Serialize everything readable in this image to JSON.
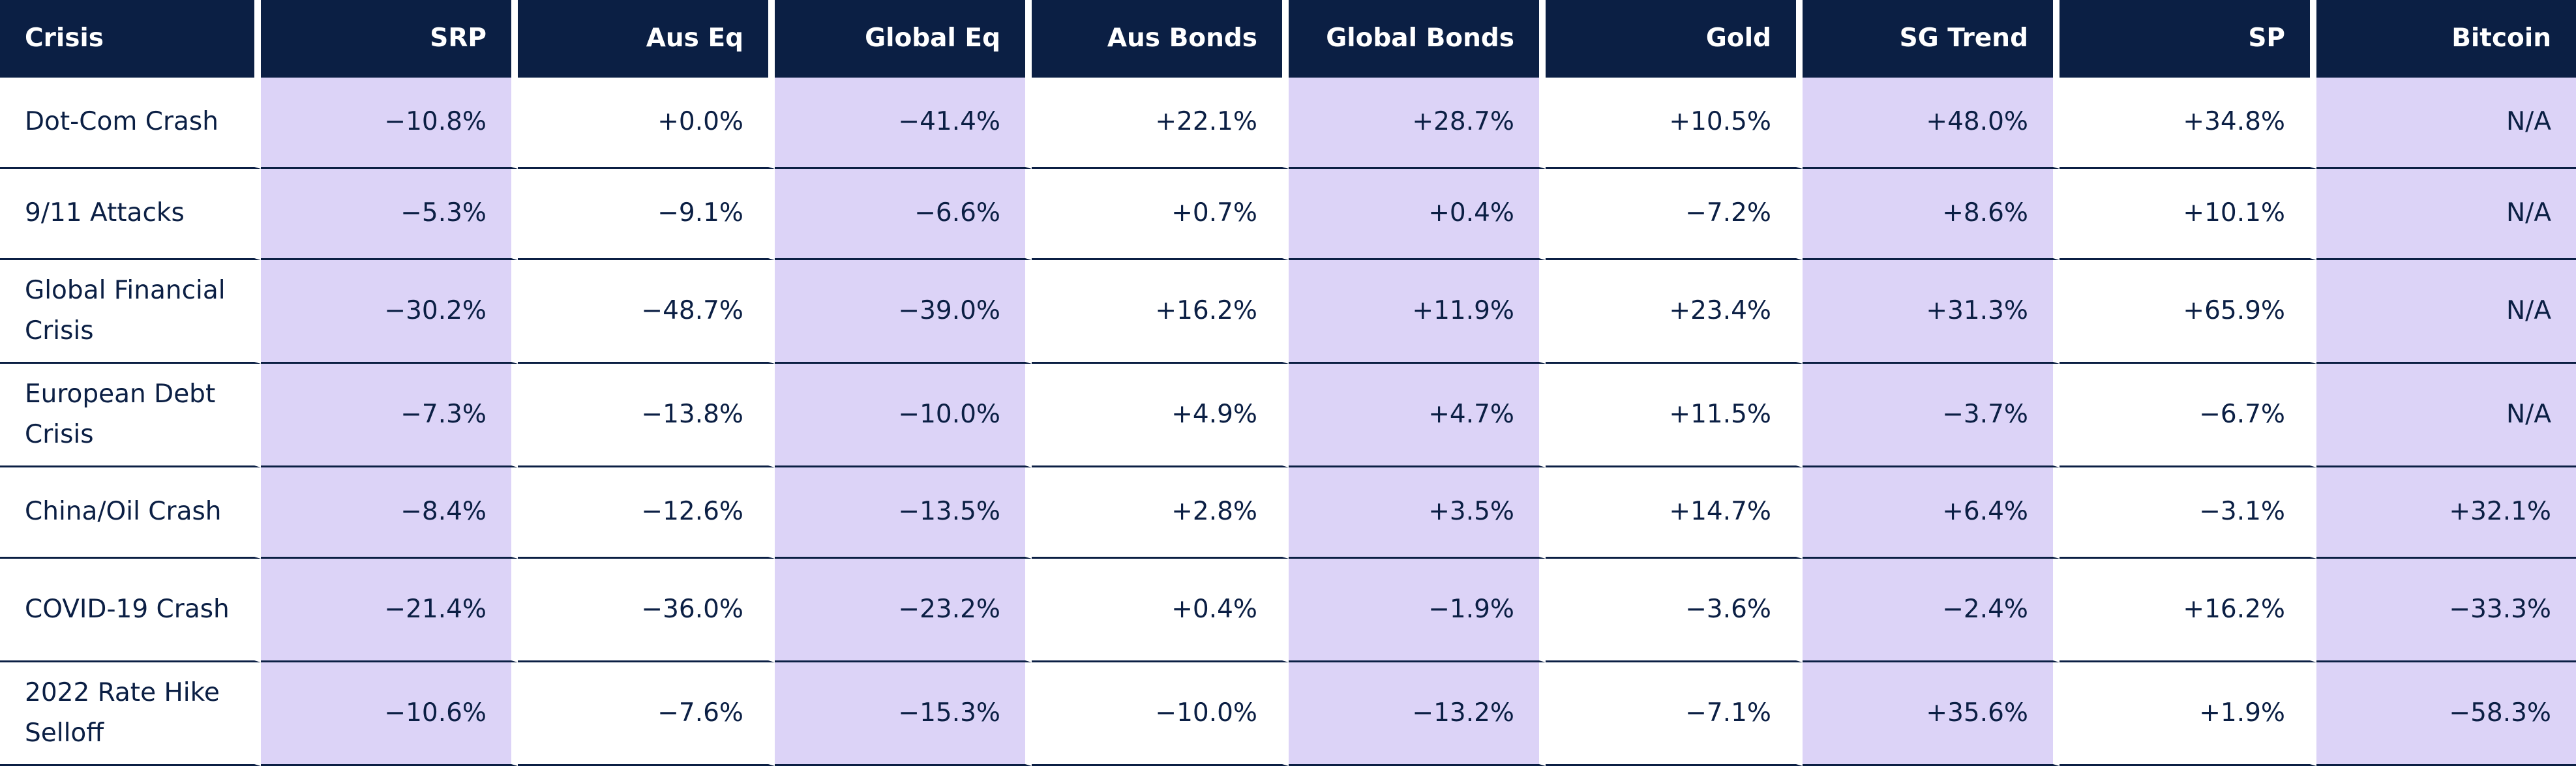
{
  "table": {
    "header": [
      "Crisis",
      "SRP",
      "Aus Eq",
      "Global Eq",
      "Aus Bonds",
      "Global Bonds",
      "Gold",
      "SG Trend",
      "SP",
      "Bitcoin"
    ],
    "rows": [
      [
        "Dot-Com Crash",
        "−10.8%",
        "+0.0%",
        "−41.4%",
        "+22.1%",
        "+28.7%",
        "+10.5%",
        "+48.0%",
        "+34.8%",
        "N/A"
      ],
      [
        "9/11 Attacks",
        "−5.3%",
        "−9.1%",
        "−6.6%",
        "+0.7%",
        "+0.4%",
        "−7.2%",
        "+8.6%",
        "+10.1%",
        "N/A"
      ],
      [
        "Global Financial Crisis",
        "−30.2%",
        "−48.7%",
        "−39.0%",
        "+16.2%",
        "+11.9%",
        "+23.4%",
        "+31.3%",
        "+65.9%",
        "N/A"
      ],
      [
        "European Debt Crisis",
        "−7.3%",
        "−13.8%",
        "−10.0%",
        "+4.9%",
        "+4.7%",
        "+11.5%",
        "−3.7%",
        "−6.7%",
        "N/A"
      ],
      [
        "China/Oil Crash",
        "−8.4%",
        "−12.6%",
        "−13.5%",
        "+2.8%",
        "+3.5%",
        "+14.7%",
        "+6.4%",
        "−3.1%",
        "+32.1%"
      ],
      [
        "COVID-19 Crash",
        "−21.4%",
        "−36.0%",
        "−23.2%",
        "+0.4%",
        "−1.9%",
        "−3.6%",
        "−2.4%",
        "+16.2%",
        "−33.3%"
      ],
      [
        "2022 Rate Hike Selloff",
        "−10.6%",
        "−7.6%",
        "−15.3%",
        "−10.0%",
        "−13.2%",
        "−7.1%",
        "+35.6%",
        "+1.9%",
        "−58.3%"
      ]
    ]
  }
}
